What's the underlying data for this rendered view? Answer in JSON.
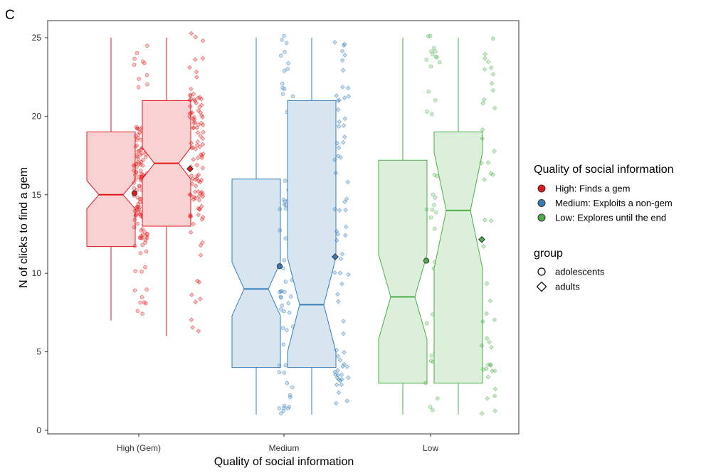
{
  "panel_tag": "C",
  "colors": {
    "high": "#E41A1C",
    "medium": "#377EB8",
    "low": "#4DAF4A",
    "high_fill": "#F8D1D2",
    "medium_fill": "#D7E5F1",
    "low_fill": "#DBEFDA"
  },
  "chart_data": {
    "type": "boxplot",
    "xlabel": "Quality of social information",
    "ylabel": "N of clicks to find a gem",
    "categories": [
      "High (Gem)",
      "Medium",
      "Low"
    ],
    "ylim": [
      0,
      25.5
    ],
    "yticks": [
      0,
      5,
      10,
      15,
      20,
      25
    ],
    "grid": false,
    "notched": true,
    "groups": [
      "adolescents",
      "adults"
    ],
    "boxes": [
      {
        "category": "High (Gem)",
        "group": "adolescents",
        "whisker_low": 7,
        "q1": 11.7,
        "median": 15,
        "q3": 19,
        "whisker_high": 25,
        "notch_low": 14.1,
        "notch_high": 15.9,
        "mean": 15.1
      },
      {
        "category": "High (Gem)",
        "group": "adults",
        "whisker_low": 6,
        "q1": 13,
        "median": 17,
        "q3": 21,
        "whisker_high": 25,
        "notch_low": 16,
        "notch_high": 18,
        "mean": 16.65
      },
      {
        "category": "Medium",
        "group": "adolescents",
        "whisker_low": 1,
        "q1": 4,
        "median": 9,
        "q3": 16,
        "whisker_high": 25,
        "notch_low": 7.3,
        "notch_high": 10.7,
        "mean": 10.45
      },
      {
        "category": "Medium",
        "group": "adults",
        "whisker_low": 1,
        "q1": 4,
        "median": 8,
        "q3": 21,
        "whisker_high": 25,
        "notch_low": 5,
        "notch_high": 11,
        "mean": 11.05
      },
      {
        "category": "Low",
        "group": "adolescents",
        "whisker_low": 1,
        "q1": 3,
        "median": 8.5,
        "q3": 17.2,
        "whisker_high": 25,
        "notch_low": 5.8,
        "notch_high": 11.2,
        "mean": 10.8
      },
      {
        "category": "Low",
        "group": "adults",
        "whisker_low": 1,
        "q1": 3,
        "median": 14,
        "q3": 19,
        "whisker_high": 25,
        "notch_low": 10.3,
        "notch_high": 17.7,
        "mean": 12.15
      }
    ],
    "legend": {
      "placement": "right",
      "color_title": "Quality of social information",
      "color_items": [
        "High: Finds a gem",
        "Medium: Exploits a non-gem",
        "Low: Explores until the end"
      ],
      "shape_title": "group",
      "shape_items": [
        "adolescents",
        "adults"
      ]
    }
  }
}
